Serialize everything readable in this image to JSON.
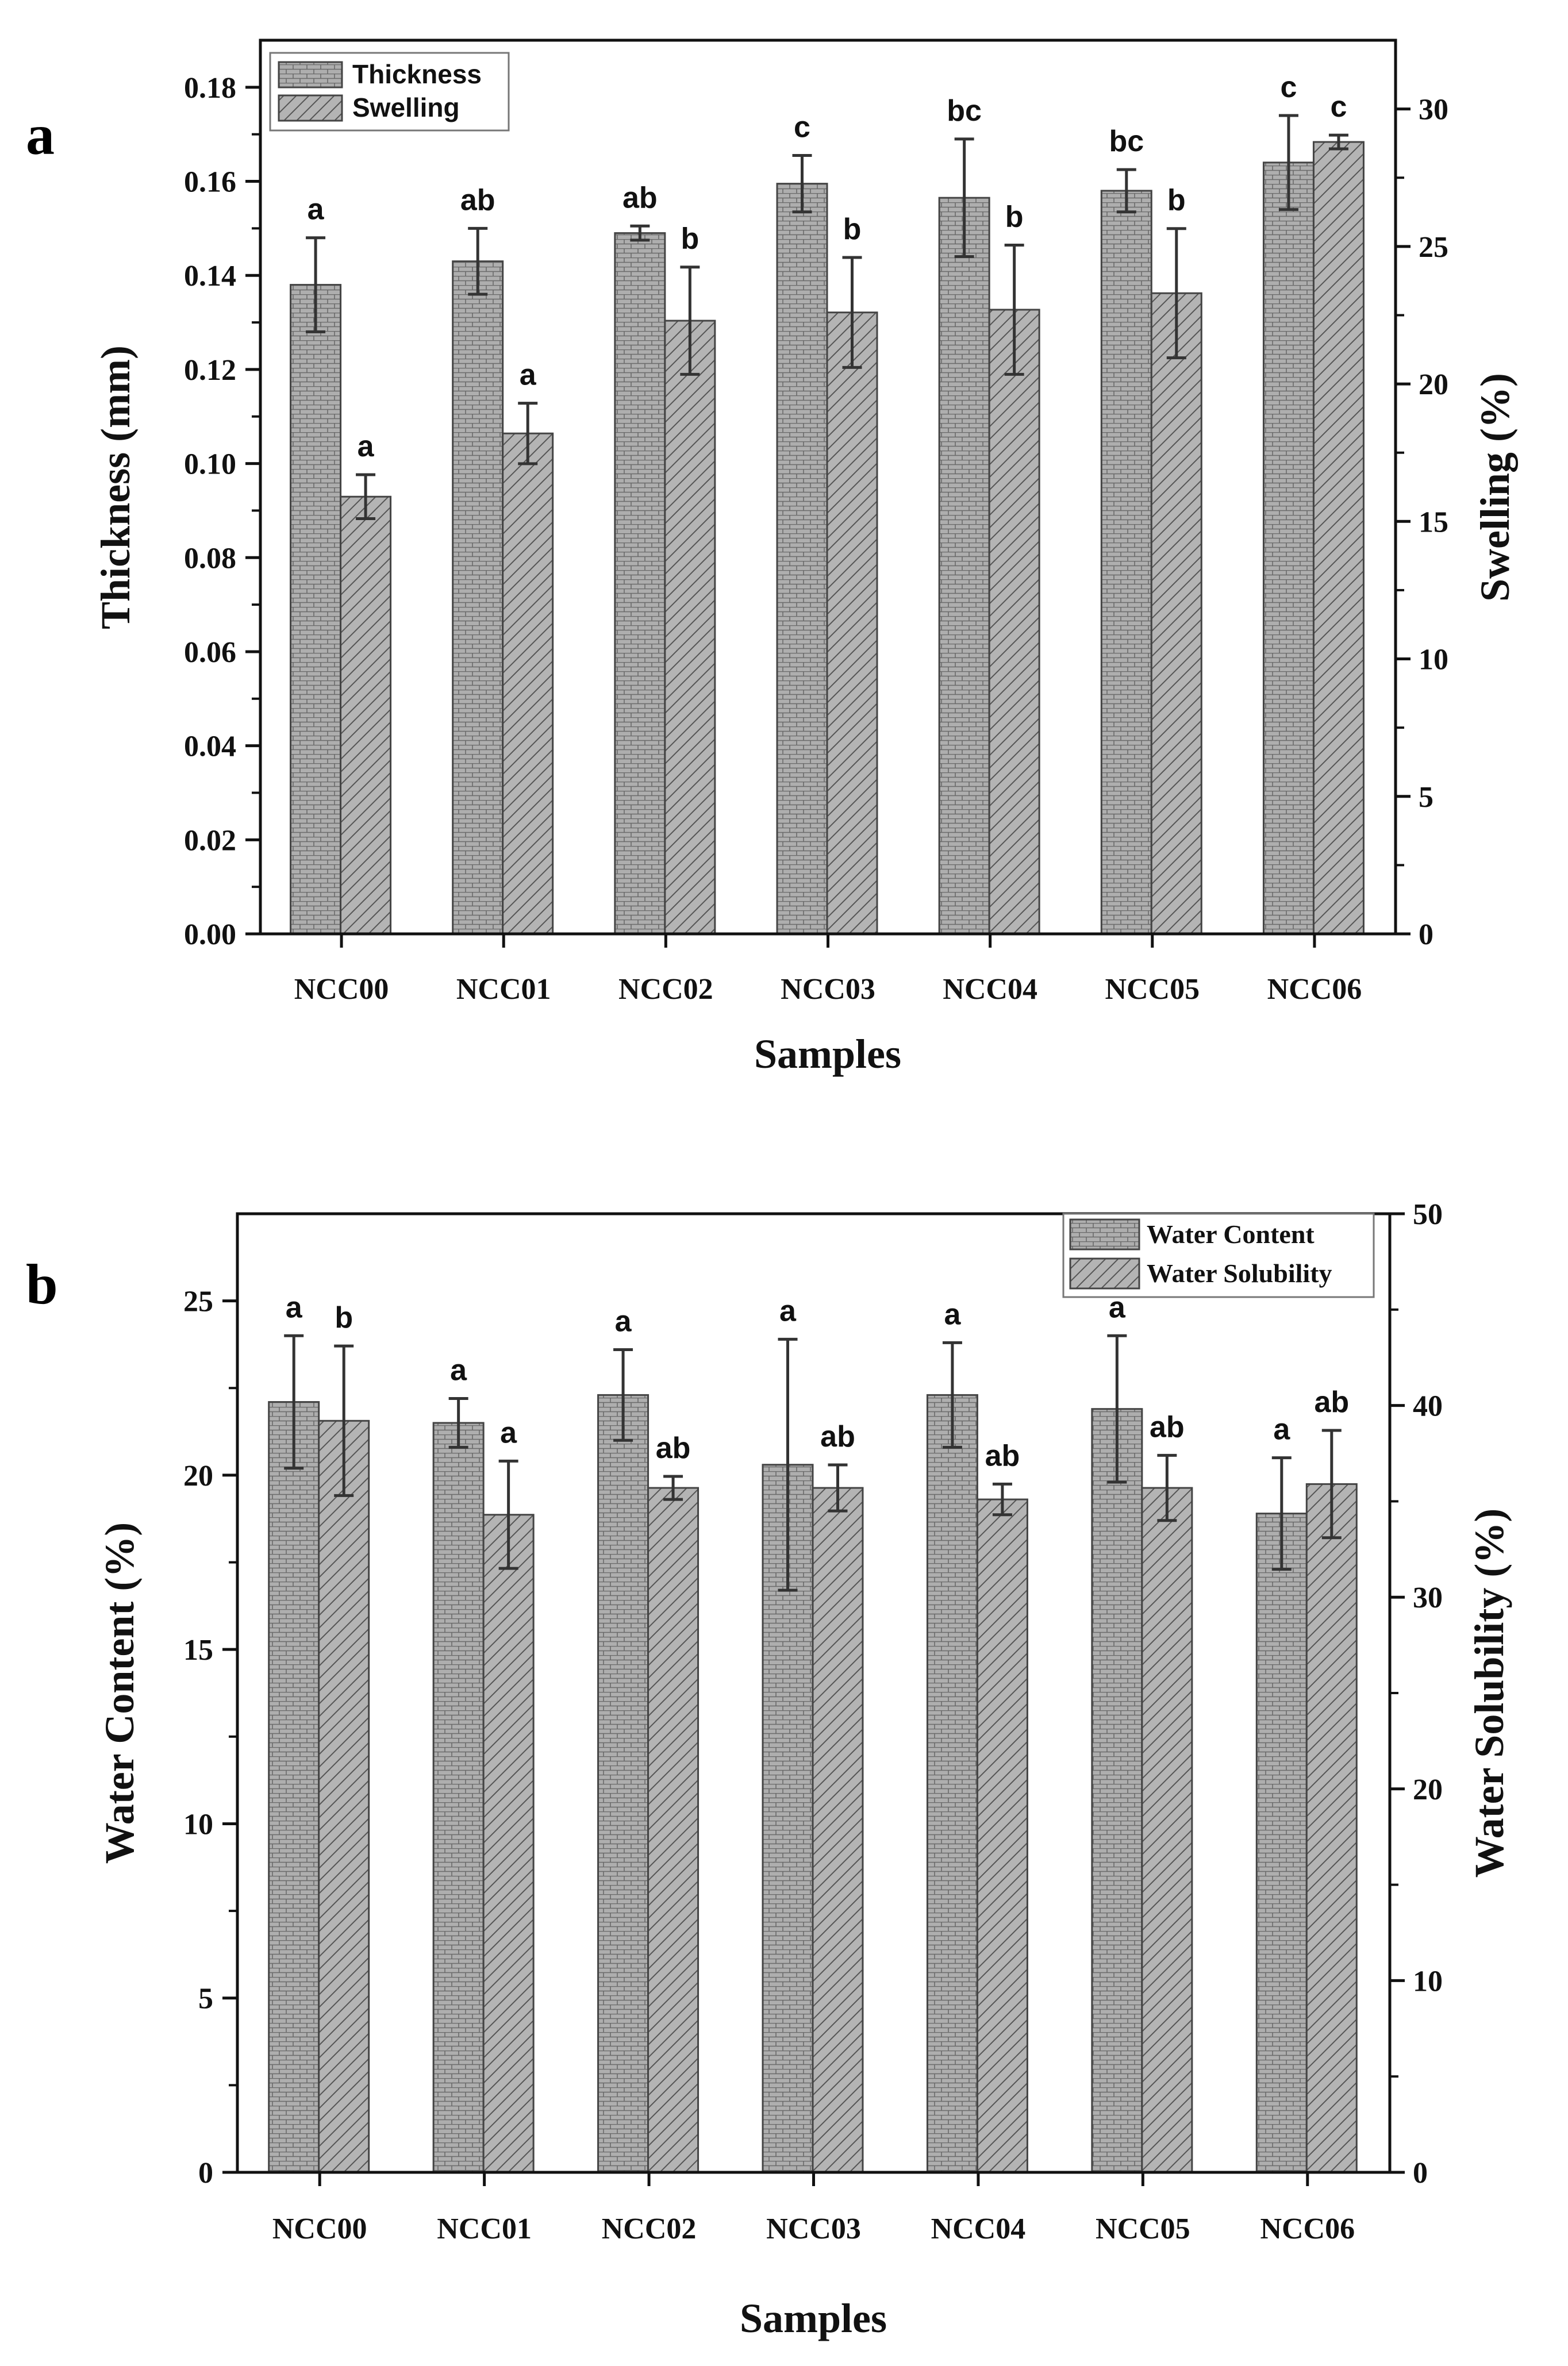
{
  "colors": {
    "bar_fill": "#aeaeae",
    "bar_stroke": "#444444",
    "pattern_line": "#555555",
    "error_bar": "#333333",
    "axis": "#111111"
  },
  "chart_data": [
    {
      "panel_label": "a",
      "type": "bar",
      "xlabel": "Samples",
      "ylabel_left": "Thickness (mm)",
      "ylabel_right": "Swelling (%)",
      "categories": [
        "NCC00",
        "NCC01",
        "NCC02",
        "NCC03",
        "NCC04",
        "NCC05",
        "NCC06"
      ],
      "ylim_left": [
        0,
        0.19
      ],
      "ylim_right": [
        0,
        32.5
      ],
      "yticks_left": [
        "0.00",
        "0.02",
        "0.04",
        "0.06",
        "0.08",
        "0.10",
        "0.12",
        "0.14",
        "0.16",
        "0.18"
      ],
      "yticks_right": [
        "0",
        "5",
        "10",
        "15",
        "20",
        "25",
        "30"
      ],
      "legend": [
        "Thickness",
        "Swelling"
      ],
      "legend_position": "top-left",
      "series": [
        {
          "name": "Thickness",
          "axis": "left",
          "pattern": "brick",
          "values": [
            0.138,
            0.143,
            0.149,
            0.1595,
            0.1565,
            0.158,
            0.164
          ],
          "errors": [
            0.01,
            0.007,
            0.0015,
            0.006,
            0.0125,
            0.0045,
            0.01
          ],
          "labels": [
            "a",
            "ab",
            "ab",
            "c",
            "bc",
            "bc",
            "c"
          ]
        },
        {
          "name": "Swelling",
          "axis": "right",
          "pattern": "hatch",
          "values": [
            15.9,
            18.2,
            22.3,
            22.6,
            22.7,
            23.3,
            28.8
          ],
          "errors": [
            0.8,
            1.1,
            1.95,
            2.0,
            2.35,
            2.35,
            0.25
          ],
          "labels": [
            "a",
            "a",
            "b",
            "b",
            "b",
            "b",
            "c"
          ]
        }
      ]
    },
    {
      "panel_label": "b",
      "type": "bar",
      "xlabel": "Samples",
      "ylabel_left": "Water Content (%)",
      "ylabel_right": "Water Solubility (%)",
      "categories": [
        "NCC00",
        "NCC01",
        "NCC02",
        "NCC03",
        "NCC04",
        "NCC05",
        "NCC06"
      ],
      "ylim_left": [
        0,
        27.5
      ],
      "ylim_right": [
        0,
        50
      ],
      "yticks_left": [
        "0",
        "5",
        "10",
        "15",
        "20",
        "25"
      ],
      "yticks_right": [
        "0",
        "10",
        "20",
        "30",
        "40",
        "50"
      ],
      "legend": [
        "Water Content",
        "Water Solubility"
      ],
      "legend_position": "top-right",
      "series": [
        {
          "name": "Water Content",
          "axis": "left",
          "pattern": "brick",
          "values": [
            22.1,
            21.5,
            22.3,
            20.3,
            22.3,
            21.9,
            18.9
          ],
          "errors": [
            1.9,
            0.7,
            1.3,
            3.6,
            1.5,
            2.1,
            1.6
          ],
          "labels": [
            "a",
            "a",
            "a",
            "a",
            "a",
            "a",
            "a"
          ]
        },
        {
          "name": "Water Solubility",
          "axis": "right",
          "pattern": "hatch",
          "values": [
            39.2,
            34.3,
            35.7,
            35.7,
            35.1,
            35.7,
            35.9
          ],
          "errors": [
            3.9,
            2.8,
            0.6,
            1.2,
            0.8,
            1.7,
            2.8
          ],
          "labels": [
            "b",
            "a",
            "ab",
            "ab",
            "ab",
            "ab",
            "ab"
          ]
        }
      ]
    }
  ]
}
